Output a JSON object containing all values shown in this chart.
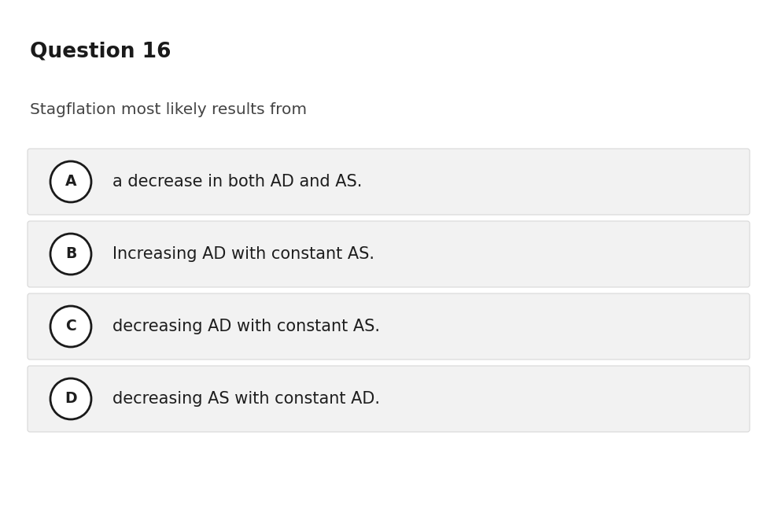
{
  "background_color": "#ffffff",
  "question_number": "Question 16",
  "question_text": "Stagflation most likely results from",
  "options": [
    {
      "letter": "A",
      "text": "a decrease in both AD and AS."
    },
    {
      "letter": "B",
      "text": "Increasing AD with constant AS."
    },
    {
      "letter": "C",
      "text": "decreasing AD with constant AS."
    },
    {
      "letter": "D",
      "text": "decreasing AS with constant AD."
    }
  ],
  "option_box_color": "#f2f2f2",
  "option_box_edge_color": "#d8d8d8",
  "question_num_color": "#1a1a1a",
  "question_text_color": "#444444",
  "option_text_color": "#1e1e1e",
  "circle_edge_color": "#1a1a1a",
  "circle_face_color": "#ffffff",
  "question_num_fontsize": 19,
  "question_text_fontsize": 14.5,
  "option_text_fontsize": 15,
  "letter_fontsize": 13.5,
  "fig_width": 9.89,
  "fig_height": 6.47,
  "dpi": 100
}
